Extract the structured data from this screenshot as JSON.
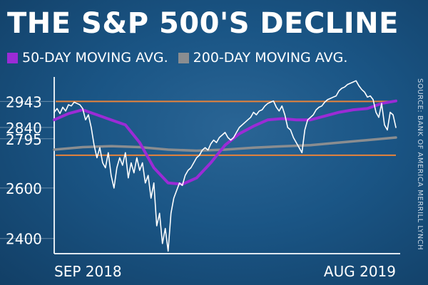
{
  "title": "THE S&P 500'S DECLINE",
  "legend": [
    {
      "label": "50-DAY MOVING AVG.",
      "color": "#9b2bd6"
    },
    {
      "label": "200-DAY MOVING AVG.",
      "color": "#8a8d90"
    }
  ],
  "source": "SOURCE: BANK OF AMERICA MERRILL LYNCH",
  "chart_data": {
    "type": "line",
    "xlabel": "",
    "ylabel": "",
    "x_ticks": [
      "SEP 2018",
      "AUG 2019"
    ],
    "y_ticks": [
      2400,
      2600,
      2795,
      2840,
      2943
    ],
    "ylim": [
      2340,
      3040
    ],
    "grid": false,
    "legend_position": "top-left",
    "horizontal_lines": [
      {
        "value": 2943,
        "color": "#e8833a"
      },
      {
        "value": 2730,
        "color": "#e8833a"
      }
    ],
    "series": [
      {
        "name": "S&P 500",
        "color": "#ffffff",
        "x": [
          0,
          4,
          8,
          12,
          16,
          20,
          24,
          28,
          32,
          36,
          40,
          44,
          48,
          52,
          56,
          60,
          64,
          68,
          72,
          76,
          80,
          84,
          88,
          92,
          96,
          100,
          104,
          108,
          112,
          116,
          120,
          124,
          128,
          132,
          136,
          140,
          144,
          148,
          152,
          156,
          160,
          164,
          168,
          172,
          176,
          180,
          184,
          188,
          192,
          196,
          200,
          204,
          208,
          212,
          216,
          220,
          224,
          228,
          232,
          236,
          240,
          244,
          248,
          252,
          256,
          260,
          264,
          268,
          272,
          276,
          280,
          284,
          288,
          292,
          296,
          300,
          304,
          308,
          312,
          316,
          320,
          324,
          328,
          332,
          336,
          340,
          344,
          348,
          352,
          356,
          360,
          364,
          368,
          372,
          376,
          380,
          384,
          388,
          392,
          396,
          400,
          404,
          408,
          412,
          416,
          420,
          424,
          428,
          432,
          436,
          440,
          444,
          448,
          452,
          456,
          460,
          464,
          468,
          472,
          476,
          480
        ],
        "values": [
          2900,
          2915,
          2895,
          2920,
          2905,
          2930,
          2925,
          2940,
          2935,
          2930,
          2915,
          2870,
          2890,
          2840,
          2770,
          2720,
          2760,
          2700,
          2680,
          2740,
          2650,
          2600,
          2680,
          2720,
          2690,
          2740,
          2640,
          2700,
          2660,
          2720,
          2670,
          2700,
          2620,
          2650,
          2560,
          2620,
          2450,
          2500,
          2380,
          2440,
          2350,
          2500,
          2560,
          2590,
          2620,
          2610,
          2650,
          2670,
          2680,
          2700,
          2720,
          2730,
          2750,
          2760,
          2750,
          2775,
          2790,
          2780,
          2800,
          2810,
          2820,
          2800,
          2790,
          2800,
          2820,
          2840,
          2850,
          2860,
          2870,
          2880,
          2900,
          2890,
          2905,
          2910,
          2925,
          2935,
          2940,
          2945,
          2920,
          2905,
          2925,
          2890,
          2840,
          2830,
          2800,
          2780,
          2760,
          2740,
          2830,
          2870,
          2880,
          2890,
          2910,
          2920,
          2925,
          2940,
          2950,
          2955,
          2960,
          2965,
          2985,
          2995,
          3000,
          3010,
          3015,
          3020,
          3025,
          3005,
          2990,
          2980,
          2960,
          2965,
          2950,
          2900,
          2880,
          2935,
          2850,
          2830,
          2900,
          2890,
          2840
        ]
      },
      {
        "name": "50-DAY MOVING AVG.",
        "color": "#9b2bd6",
        "x": [
          0,
          20,
          40,
          60,
          80,
          100,
          120,
          140,
          160,
          180,
          200,
          220,
          240,
          260,
          280,
          300,
          320,
          340,
          360,
          380,
          400,
          420,
          440,
          460,
          480
        ],
        "values": [
          2870,
          2895,
          2910,
          2890,
          2870,
          2850,
          2780,
          2680,
          2620,
          2615,
          2640,
          2700,
          2770,
          2815,
          2845,
          2870,
          2875,
          2870,
          2870,
          2885,
          2900,
          2910,
          2915,
          2935,
          2945
        ]
      },
      {
        "name": "200-DAY MOVING AVG.",
        "color": "#8a8d90",
        "x": [
          0,
          40,
          80,
          120,
          160,
          200,
          240,
          280,
          320,
          360,
          400,
          440,
          480
        ],
        "values": [
          2752,
          2762,
          2766,
          2762,
          2752,
          2748,
          2752,
          2760,
          2765,
          2770,
          2780,
          2790,
          2800
        ]
      }
    ]
  }
}
